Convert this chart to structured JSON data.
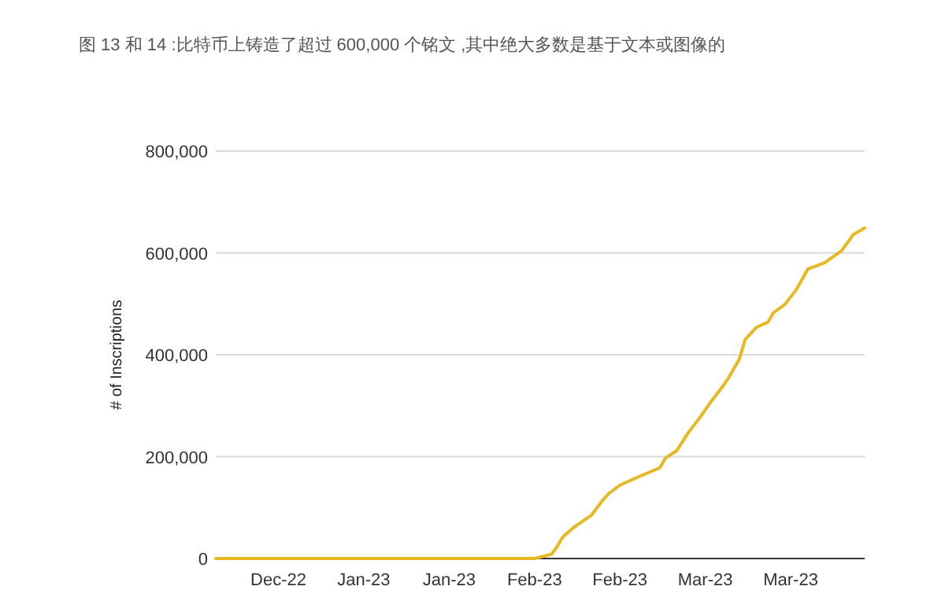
{
  "chart_data": {
    "type": "line",
    "title": "图 13 和 14 :比特币上铸造了超过 600,000 个铭文 ,其中绝大多数是基于文本或图像的",
    "ylabel": "# of Inscriptions",
    "x": [
      "2022-12-09",
      "2023-02-03",
      "2023-02-06",
      "2023-02-07",
      "2023-02-08",
      "2023-02-10",
      "2023-02-13",
      "2023-02-15",
      "2023-02-16",
      "2023-02-18",
      "2023-02-21",
      "2023-02-25",
      "2023-02-26",
      "2023-02-28",
      "2023-03-02",
      "2023-03-04",
      "2023-03-06",
      "2023-03-08",
      "2023-03-09",
      "2023-03-11",
      "2023-03-12",
      "2023-03-14",
      "2023-03-16",
      "2023-03-17",
      "2023-03-19",
      "2023-03-21",
      "2023-03-23",
      "2023-03-26",
      "2023-03-29",
      "2023-03-31",
      "2023-04-02"
    ],
    "series": [
      {
        "color": "#e6b822",
        "values": [
          0,
          0,
          8500,
          24000,
          43000,
          62000,
          85000,
          115000,
          127000,
          144000,
          159000,
          178000,
          197000,
          212000,
          247000,
          276000,
          308000,
          337000,
          353000,
          392000,
          430000,
          454000,
          464000,
          483000,
          499000,
          528000,
          568000,
          581000,
          605000,
          636000,
          649000
        ]
      }
    ],
    "xlim": [
      "2022-12-09",
      "2023-04-02"
    ],
    "xticks": [
      {
        "value": "2022-12-20",
        "label": "Dec-22"
      },
      {
        "value": "2023-01-04",
        "label": "Jan-23"
      },
      {
        "value": "2023-01-19",
        "label": "Jan-23"
      },
      {
        "value": "2023-02-03",
        "label": "Feb-23"
      },
      {
        "value": "2023-02-18",
        "label": "Feb-23"
      },
      {
        "value": "2023-03-05",
        "label": "Mar-23"
      },
      {
        "value": "2023-03-20",
        "label": "Mar-23"
      }
    ],
    "ylim": [
      0,
      800000
    ],
    "yticks": [
      {
        "value": 0,
        "label": "0"
      },
      {
        "value": 200000,
        "label": "200,000"
      },
      {
        "value": 400000,
        "label": "400,000"
      },
      {
        "value": 600000,
        "label": "600,000"
      },
      {
        "value": 800000,
        "label": "800,000"
      }
    ],
    "grid": "y",
    "marker": "none",
    "line_style": "solid"
  }
}
